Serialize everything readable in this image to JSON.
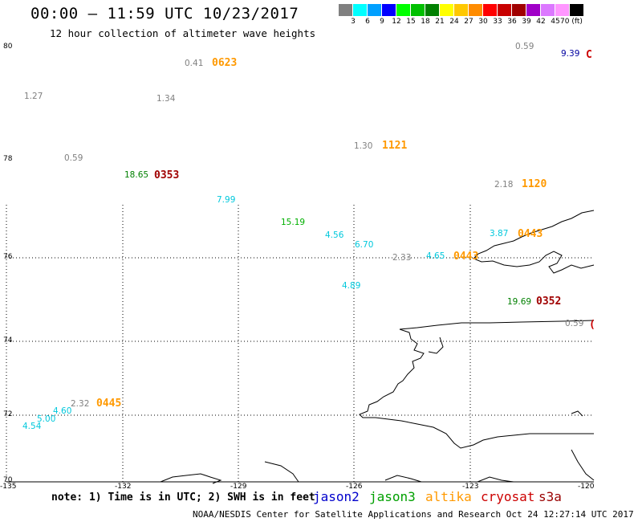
{
  "header": {
    "title": "00:00 – 11:59 UTC 10/23/2017",
    "subtitle": "12 hour collection of altimeter wave heights"
  },
  "legend": {
    "colors": [
      "#808080",
      "#00ffff",
      "#00a0ff",
      "#0000ff",
      "#00ff00",
      "#00c000",
      "#008000",
      "#ffff00",
      "#ffc800",
      "#ff8c00",
      "#ff0000",
      "#c80000",
      "#a00000",
      "#a000c8",
      "#dc78ff",
      "#ff96ff",
      "#000000"
    ],
    "ticks": [
      "3",
      "6",
      "9",
      "12",
      "15",
      "18",
      "21",
      "24",
      "27",
      "30",
      "33",
      "36",
      "39",
      "42",
      "45",
      "70 (ft)"
    ]
  },
  "axes": {
    "lat_labels": [
      "80",
      "78",
      "76",
      "74",
      "72",
      "70"
    ],
    "lon_labels": [
      "-135",
      "-132",
      "-129",
      "-126",
      "-123",
      "-120"
    ]
  },
  "observations": [
    {
      "text": "0.59",
      "color": "#808080"
    },
    {
      "text": "9.39",
      "color": "#0000a0"
    },
    {
      "text": "0.41",
      "color": "#808080"
    },
    {
      "text": "0623",
      "color": "#ff9900",
      "kind": "time"
    },
    {
      "text": "1.27",
      "color": "#808080"
    },
    {
      "text": "1.34",
      "color": "#808080"
    },
    {
      "text": "1.30",
      "color": "#808080"
    },
    {
      "text": "1121",
      "color": "#ff9900",
      "kind": "time"
    },
    {
      "text": "0.59",
      "color": "#808080"
    },
    {
      "text": "18.65",
      "color": "#008000"
    },
    {
      "text": "0353",
      "color": "#a00000",
      "kind": "time"
    },
    {
      "text": "2.18",
      "color": "#808080"
    },
    {
      "text": "1120",
      "color": "#ff9900",
      "kind": "time"
    },
    {
      "text": "7.99",
      "color": "#00c8dc"
    },
    {
      "text": "15.19",
      "color": "#00b000"
    },
    {
      "text": "4.56",
      "color": "#00c8dc"
    },
    {
      "text": "3.87",
      "color": "#00c8dc"
    },
    {
      "text": "0443",
      "color": "#ff9900",
      "kind": "time"
    },
    {
      "text": "6.70",
      "color": "#00c8dc"
    },
    {
      "text": "2.33",
      "color": "#808080"
    },
    {
      "text": "4.65",
      "color": "#00c8dc"
    },
    {
      "text": "0443",
      "color": "#ff9900",
      "kind": "time"
    },
    {
      "text": "4.89",
      "color": "#00c8dc"
    },
    {
      "text": "19.69",
      "color": "#008000"
    },
    {
      "text": "0352",
      "color": "#a00000",
      "kind": "time"
    },
    {
      "text": "0.59",
      "color": "#808080"
    },
    {
      "text": "2.32",
      "color": "#808080"
    },
    {
      "text": "0445",
      "color": "#ff9900",
      "kind": "time"
    },
    {
      "text": "4.60",
      "color": "#00c8dc"
    },
    {
      "text": "5.00",
      "color": "#00c8dc"
    },
    {
      "text": "4.54",
      "color": "#00c8dc"
    }
  ],
  "bottom": {
    "note": "note: 1) Time is in UTC; 2) SWH is in feet",
    "satellites": [
      {
        "name": "jason2",
        "color": "#0000cc"
      },
      {
        "name": "jason3",
        "color": "#00a000"
      },
      {
        "name": "altika",
        "color": "#ff9900"
      },
      {
        "name": "cryosat",
        "color": "#cc0000"
      },
      {
        "name": "s3a",
        "color": "#990000"
      }
    ],
    "footer": "NOAA/NESDIS Center for Satellite Applications and Research   Oct 24 12:27:14 UTC 2017"
  }
}
